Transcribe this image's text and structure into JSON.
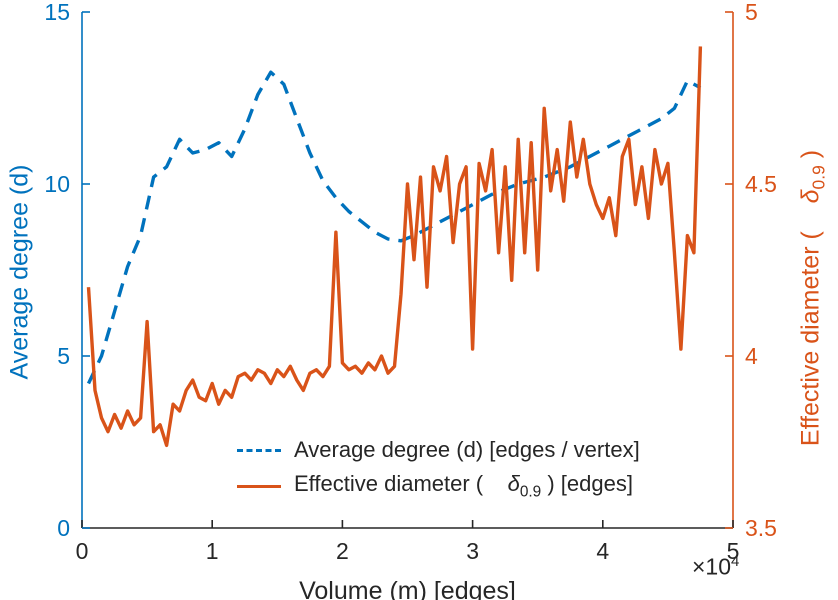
{
  "chart_data": {
    "type": "line",
    "title": "",
    "xlabel": "Volume (m) [edges]",
    "x_exponent_prefix": "×10",
    "x_exponent": "4",
    "x_unit_scale": 10000,
    "xlim": [
      0,
      5
    ],
    "x_ticks": [
      0,
      1,
      2,
      3,
      4,
      5
    ],
    "axis_color": "#262626",
    "grid": false,
    "left_axis": {
      "label": "Average degree (d)",
      "color": "#0072BD",
      "lim": [
        0,
        15
      ],
      "ticks": [
        0,
        5,
        10,
        15
      ]
    },
    "right_axis": {
      "label_prefix": "Effective diameter (    ",
      "delta": "δ",
      "sub": "0.9",
      "label_suffix": " )",
      "color": "#D95319",
      "lim": [
        3.5,
        5
      ],
      "ticks": [
        3.5,
        4,
        4.5,
        5
      ]
    },
    "series": [
      {
        "name": "Average degree (d) [edges / vertex]",
        "axis": "left",
        "style": "dashed",
        "color": "#0072BD",
        "x": [
          0.05,
          0.15,
          0.25,
          0.35,
          0.45,
          0.55,
          0.65,
          0.75,
          0.85,
          0.95,
          1.05,
          1.15,
          1.25,
          1.35,
          1.45,
          1.55,
          1.65,
          1.75,
          1.85,
          1.95,
          2.05,
          2.15,
          2.25,
          2.35,
          2.45,
          2.55,
          2.65,
          2.75,
          2.85,
          2.95,
          3.05,
          3.15,
          3.25,
          3.35,
          3.45,
          3.55,
          3.65,
          3.75,
          3.85,
          3.95,
          4.05,
          4.15,
          4.25,
          4.35,
          4.45,
          4.55,
          4.65,
          4.75
        ],
        "y": [
          4.2,
          5.0,
          6.3,
          7.6,
          8.5,
          10.2,
          10.5,
          11.3,
          10.9,
          11.0,
          11.2,
          10.8,
          11.6,
          12.6,
          13.25,
          12.9,
          11.9,
          10.9,
          10.1,
          9.6,
          9.2,
          8.9,
          8.6,
          8.4,
          8.35,
          8.5,
          8.7,
          8.9,
          9.1,
          9.3,
          9.5,
          9.7,
          9.85,
          10.0,
          10.1,
          10.2,
          10.35,
          10.5,
          10.7,
          10.9,
          11.1,
          11.3,
          11.5,
          11.7,
          11.9,
          12.2,
          13.0,
          12.8
        ]
      },
      {
        "name": "Effective diameter ( δ_0.9 ) [edges]",
        "axis": "right",
        "style": "solid",
        "color": "#D95319",
        "x": [
          0.05,
          0.1,
          0.15,
          0.2,
          0.25,
          0.3,
          0.35,
          0.4,
          0.45,
          0.5,
          0.55,
          0.6,
          0.65,
          0.7,
          0.75,
          0.8,
          0.85,
          0.9,
          0.95,
          1.0,
          1.05,
          1.1,
          1.15,
          1.2,
          1.25,
          1.3,
          1.35,
          1.4,
          1.45,
          1.5,
          1.55,
          1.6,
          1.65,
          1.7,
          1.75,
          1.8,
          1.85,
          1.9,
          1.95,
          2.0,
          2.05,
          2.1,
          2.15,
          2.2,
          2.25,
          2.3,
          2.35,
          2.4,
          2.45,
          2.5,
          2.55,
          2.6,
          2.65,
          2.7,
          2.75,
          2.8,
          2.85,
          2.9,
          2.95,
          3.0,
          3.05,
          3.1,
          3.15,
          3.2,
          3.25,
          3.3,
          3.35,
          3.4,
          3.45,
          3.5,
          3.55,
          3.6,
          3.65,
          3.7,
          3.75,
          3.8,
          3.85,
          3.9,
          3.95,
          4.0,
          4.05,
          4.1,
          4.15,
          4.2,
          4.25,
          4.3,
          4.35,
          4.4,
          4.45,
          4.5,
          4.55,
          4.6,
          4.65,
          4.7,
          4.75
        ],
        "y": [
          4.2,
          3.9,
          3.82,
          3.78,
          3.83,
          3.79,
          3.84,
          3.8,
          3.82,
          4.1,
          3.78,
          3.8,
          3.74,
          3.86,
          3.84,
          3.9,
          3.93,
          3.88,
          3.87,
          3.92,
          3.86,
          3.9,
          3.88,
          3.94,
          3.95,
          3.93,
          3.96,
          3.95,
          3.92,
          3.96,
          3.94,
          3.97,
          3.93,
          3.9,
          3.95,
          3.96,
          3.94,
          3.97,
          4.36,
          3.98,
          3.96,
          3.97,
          3.95,
          3.98,
          3.96,
          4.0,
          3.95,
          3.97,
          4.18,
          4.5,
          4.28,
          4.52,
          4.2,
          4.55,
          4.48,
          4.58,
          4.33,
          4.5,
          4.55,
          4.02,
          4.56,
          4.48,
          4.6,
          4.3,
          4.55,
          4.22,
          4.63,
          4.3,
          4.62,
          4.25,
          4.72,
          4.48,
          4.6,
          4.45,
          4.68,
          4.52,
          4.63,
          4.5,
          4.44,
          4.4,
          4.46,
          4.35,
          4.58,
          4.63,
          4.44,
          4.55,
          4.4,
          4.6,
          4.5,
          4.56,
          4.3,
          4.02,
          4.35,
          4.3,
          4.9
        ]
      }
    ],
    "legend": [
      {
        "label": "Average degree (d) [edges / vertex]"
      },
      {
        "prefix": "Effective diameter (    ",
        "delta": "δ",
        "sub": "0.9",
        "suffix": " ) [edges]"
      }
    ]
  }
}
